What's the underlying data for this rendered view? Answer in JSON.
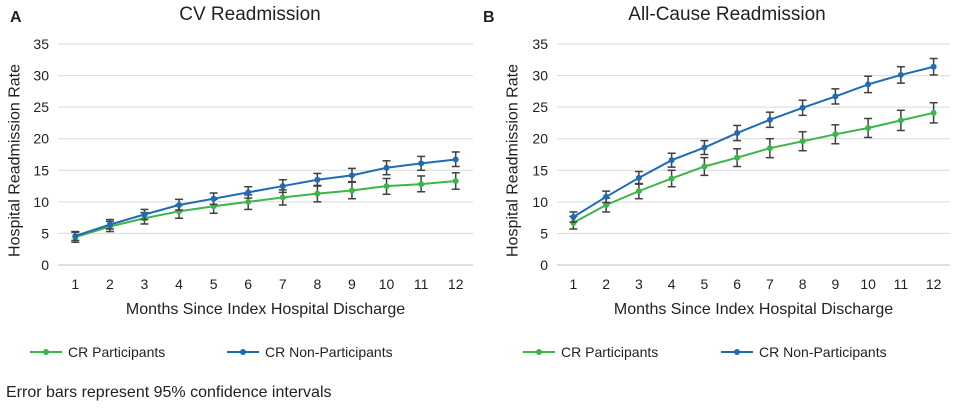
{
  "footnote": "Error bars represent 95% confidence intervals",
  "colors": {
    "participants": "#3cb54a",
    "non_participants": "#1f6bb5",
    "grid": "#d9d9d9",
    "error_bar": "#404040"
  },
  "chart_data": [
    {
      "panel_label": "A",
      "type": "line",
      "title": "CV Readmission",
      "xlabel": "Months Since Index Hospital Discharge",
      "ylabel": "Hospital Readmission Rate",
      "ylim": [
        0,
        35
      ],
      "yticks": [
        0,
        5,
        10,
        15,
        20,
        25,
        30,
        35
      ],
      "grid": true,
      "legend_position": "bottom",
      "categories": [
        "1",
        "2",
        "3",
        "4",
        "5",
        "6",
        "7",
        "8",
        "9",
        "10",
        "11",
        "12"
      ],
      "series": [
        {
          "name": "CR Participants",
          "color": "#3cb54a",
          "values": [
            4.4,
            6.1,
            7.4,
            8.5,
            9.3,
            10.0,
            10.7,
            11.3,
            11.8,
            12.5,
            12.8,
            13.3
          ],
          "lower": [
            3.6,
            5.3,
            6.5,
            7.4,
            8.2,
            8.8,
            9.5,
            10.0,
            10.5,
            11.2,
            11.6,
            12.0
          ],
          "upper": [
            5.2,
            6.9,
            8.3,
            9.5,
            10.4,
            11.1,
            11.9,
            12.6,
            13.1,
            13.7,
            14.1,
            14.6
          ]
        },
        {
          "name": "CR Non-Participants",
          "color": "#1f6bb5",
          "values": [
            4.6,
            6.4,
            8.0,
            9.5,
            10.5,
            11.5,
            12.5,
            13.5,
            14.2,
            15.4,
            16.1,
            16.7
          ],
          "lower": [
            3.9,
            5.7,
            7.2,
            8.7,
            9.6,
            10.6,
            11.5,
            12.5,
            13.2,
            14.3,
            15.0,
            15.6
          ],
          "upper": [
            5.3,
            7.2,
            8.8,
            10.4,
            11.4,
            12.4,
            13.5,
            14.5,
            15.3,
            16.5,
            17.2,
            17.9
          ]
        }
      ]
    },
    {
      "panel_label": "B",
      "type": "line",
      "title": "All-Cause Readmission",
      "xlabel": "Months Since Index Hospital Discharge",
      "ylabel": "Hospital Readmission Rate",
      "ylim": [
        0,
        35
      ],
      "yticks": [
        0,
        5,
        10,
        15,
        20,
        25,
        30,
        35
      ],
      "grid": true,
      "legend_position": "bottom",
      "categories": [
        "1",
        "2",
        "3",
        "4",
        "5",
        "6",
        "7",
        "8",
        "9",
        "10",
        "11",
        "12"
      ],
      "series": [
        {
          "name": "CR Participants",
          "color": "#3cb54a",
          "values": [
            6.7,
            9.5,
            11.7,
            13.7,
            15.6,
            17.0,
            18.5,
            19.6,
            20.7,
            21.7,
            22.9,
            24.1
          ],
          "lower": [
            5.7,
            8.4,
            10.5,
            12.4,
            14.2,
            15.6,
            17.0,
            18.1,
            19.2,
            20.2,
            21.3,
            22.5
          ],
          "upper": [
            7.7,
            10.6,
            12.9,
            15.0,
            17.0,
            18.4,
            20.0,
            21.1,
            22.2,
            23.2,
            24.5,
            25.7
          ]
        },
        {
          "name": "CR Non-Participants",
          "color": "#1f6bb5",
          "values": [
            7.6,
            10.8,
            13.8,
            16.6,
            18.6,
            20.9,
            23.0,
            24.9,
            26.7,
            28.6,
            30.1,
            31.4
          ],
          "lower": [
            6.8,
            9.9,
            12.8,
            15.5,
            17.5,
            19.7,
            21.8,
            23.7,
            25.5,
            27.3,
            28.8,
            30.1
          ],
          "upper": [
            8.4,
            11.7,
            14.8,
            17.7,
            19.7,
            22.1,
            24.2,
            26.1,
            27.9,
            29.9,
            31.4,
            32.7
          ]
        }
      ]
    }
  ]
}
